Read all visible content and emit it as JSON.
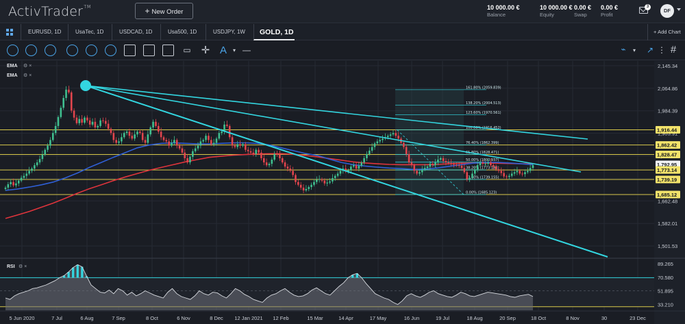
{
  "app": {
    "logo": "ActivTrader",
    "logo_mark": "TM"
  },
  "header": {
    "new_order_label": "New Order",
    "balance": {
      "value": "10 000.00 €",
      "label": "Balance"
    },
    "equity": {
      "value": "10 000.00 €",
      "label": "Equity"
    },
    "swap": {
      "value": "0.00 €",
      "label": "Swap"
    },
    "profit": {
      "value": "0.00 €",
      "label": "Profit"
    },
    "notifications_count": "3",
    "avatar_initials": "DF"
  },
  "tabs": [
    {
      "label": "EURUSD, 1D"
    },
    {
      "label": "UsaTec, 1D"
    },
    {
      "label": "USDCAD, 1D"
    },
    {
      "label": "Usa500, 1D"
    },
    {
      "label": "USDJPY, 1W"
    },
    {
      "label": "GOLD, 1D",
      "active": true
    }
  ],
  "add_chart_label": "Add Chart",
  "indicators": {
    "ema1": "EMA",
    "ema2": "EMA",
    "rsi": "RSI"
  },
  "colors": {
    "cyan": "#33d6e0",
    "up": "#3fbf8f",
    "down": "#e2454d",
    "ema_blue": "#2f5fd6",
    "ema_red": "#e0343c",
    "level_yellow": "#d9c94b",
    "accent": "#4aa3e6"
  },
  "chart_data": {
    "type": "candlestick",
    "symbol": "GOLD",
    "timeframe": "1D",
    "x_tick_labels": [
      "5 Jun 2020",
      "7 Jul",
      "6 Aug",
      "7 Sep",
      "8 Oct",
      "6 Nov",
      "8 Dec",
      "12 Jan 2021",
      "12 Feb",
      "15 Mar",
      "14 Apr",
      "17 May",
      "16 Jun",
      "19 Jul",
      "18 Aug",
      "20 Sep",
      "18 Oct",
      "8 Nov",
      "30",
      "23 Dec"
    ],
    "y_tick_labels": [
      "2,145.34",
      "2,064.86",
      "1,984.39",
      "1,903.91",
      "1,823.44",
      "1,742.97",
      "1,662.48",
      "1,582.01",
      "1,501.53"
    ],
    "ylim": [
      1470,
      2150
    ],
    "price_tags": [
      {
        "value": "1,916.44",
        "price": 1916.44,
        "style": "yellow"
      },
      {
        "value": "1,862.42",
        "price": 1862.42,
        "style": "yellow"
      },
      {
        "value": "1,828.47",
        "price": 1828.47,
        "style": "yellow"
      },
      {
        "value": "1,792.95",
        "price": 1792.95,
        "style": "white"
      },
      {
        "value": "1,773.14",
        "price": 1773.14,
        "style": "yellow"
      },
      {
        "value": "1,739.19",
        "price": 1739.19,
        "style": "yellow"
      },
      {
        "value": "1,685.12",
        "price": 1685.12,
        "style": "yellow"
      }
    ],
    "fibonacci": [
      {
        "label": "161.80% (2059.839)",
        "price": 2059.84
      },
      {
        "label": "138.20% (2004.513)",
        "price": 2004.51
      },
      {
        "label": "123.60% (1970.561)",
        "price": 1970.56
      },
      {
        "label": "100.00% (1916.452)",
        "price": 1916.45
      },
      {
        "label": "76.40% (1862.399)",
        "price": 1862.4
      },
      {
        "label": "61.80% (1828.471)",
        "price": 1828.47
      },
      {
        "label": "50.00% (1800.937)",
        "price": 1800.94
      },
      {
        "label": "38.20% (1773.184)",
        "price": 1773.18
      },
      {
        "label": "23.60% (1739.155)",
        "price": 1739.16
      },
      {
        "label": "0.00% (1685.123)",
        "price": 1685.12
      }
    ],
    "ohlc_close": [
      1710,
      1722,
      1730,
      1718,
      1725,
      1735,
      1745,
      1752,
      1760,
      1770,
      1778,
      1790,
      1800,
      1812,
      1828,
      1845,
      1860,
      1880,
      1905,
      1930,
      1962,
      1995,
      2030,
      2060,
      2050,
      1985,
      1960,
      1940,
      1955,
      1942,
      1960,
      1950,
      1935,
      1945,
      1925,
      1930,
      1950,
      1948,
      1938,
      1920,
      1905,
      1880,
      1870,
      1875,
      1890,
      1905,
      1910,
      1895,
      1885,
      1900,
      1910,
      1905,
      1880,
      1870,
      1900,
      1925,
      1945,
      1930,
      1910,
      1890,
      1880,
      1875,
      1860,
      1870,
      1880,
      1860,
      1850,
      1835,
      1815,
      1800,
      1820,
      1840,
      1850,
      1860,
      1875,
      1880,
      1895,
      1880,
      1865,
      1870,
      1885,
      1905,
      1910,
      1935,
      1930,
      1890,
      1860,
      1855,
      1865,
      1860,
      1865,
      1845,
      1840,
      1835,
      1830,
      1845,
      1835,
      1815,
      1800,
      1790,
      1795,
      1810,
      1830,
      1828,
      1815,
      1800,
      1785,
      1778,
      1770,
      1755,
      1730,
      1720,
      1710,
      1700,
      1705,
      1712,
      1720,
      1730,
      1738,
      1740,
      1735,
      1725,
      1728,
      1732,
      1744,
      1752,
      1760,
      1770,
      1778,
      1768,
      1772,
      1785,
      1790,
      1778,
      1788,
      1800,
      1815,
      1830,
      1842,
      1855,
      1868,
      1875,
      1880,
      1885,
      1890,
      1895,
      1900,
      1905,
      1895,
      1885,
      1870,
      1855,
      1830,
      1800,
      1790,
      1770,
      1760,
      1765,
      1775,
      1780,
      1785,
      1795,
      1790,
      1800,
      1810,
      1815,
      1805,
      1800,
      1798,
      1795,
      1792,
      1790,
      1788,
      1780,
      1765,
      1740,
      1745,
      1760,
      1775,
      1790,
      1800,
      1795,
      1795,
      1800,
      1790,
      1785,
      1775,
      1770,
      1762,
      1750,
      1748,
      1752,
      1760,
      1765,
      1770,
      1760,
      1758,
      1765,
      1770,
      1780,
      1790
    ],
    "ema_blue": [
      1700,
      1705,
      1712,
      1720,
      1730,
      1745,
      1762,
      1782,
      1800,
      1818,
      1835,
      1852,
      1862,
      1868,
      1870,
      1868,
      1866,
      1866,
      1868,
      1870,
      1870,
      1868,
      1862,
      1852,
      1842,
      1832,
      1825,
      1812,
      1800,
      1792,
      1787,
      1783,
      1780,
      1778,
      1775,
      1776,
      1780,
      1786,
      1792,
      1797,
      1800,
      1800,
      1798,
      1795,
      1792
    ],
    "ema_red": [
      1600,
      1612,
      1625,
      1640,
      1655,
      1672,
      1690,
      1706,
      1720,
      1735,
      1748,
      1760,
      1772,
      1782,
      1792,
      1802,
      1810,
      1818,
      1822,
      1826,
      1828,
      1830,
      1831,
      1831,
      1829,
      1825,
      1820,
      1814,
      1808,
      1802,
      1798,
      1795,
      1793,
      1792,
      1792,
      1792,
      1793,
      1795,
      1797,
      1798,
      1798,
      1797,
      1796,
      1795,
      1795
    ],
    "rsi": {
      "y_tick_labels": [
        "89.265",
        "70.580",
        "51.895",
        "33.210"
      ],
      "ylim": [
        25,
        95
      ],
      "overbought": 70,
      "oversold": 30,
      "values": [
        42,
        40,
        45,
        48,
        50,
        52,
        55,
        56,
        58,
        60,
        63,
        66,
        70,
        73,
        78,
        84,
        88,
        85,
        72,
        60,
        55,
        50,
        49,
        53,
        48,
        55,
        52,
        46,
        50,
        45,
        48,
        52,
        49,
        46,
        44,
        42,
        50,
        55,
        48,
        44,
        42,
        40,
        45,
        52,
        48,
        46,
        50,
        49,
        45,
        42,
        48,
        55,
        52,
        47,
        44,
        40,
        38,
        36,
        42,
        46,
        48,
        52,
        55,
        50,
        46,
        44,
        45,
        48,
        53,
        56,
        52,
        48,
        46,
        52,
        58,
        63,
        70,
        74,
        76,
        70,
        62,
        55,
        48,
        45,
        42,
        40,
        36,
        33,
        38,
        45,
        48,
        45,
        43,
        46,
        50,
        52,
        48,
        46,
        44,
        43,
        46,
        50,
        48,
        45,
        44,
        46,
        48,
        50,
        49,
        48,
        47,
        46,
        44,
        43,
        45,
        46,
        47,
        44
      ]
    }
  }
}
